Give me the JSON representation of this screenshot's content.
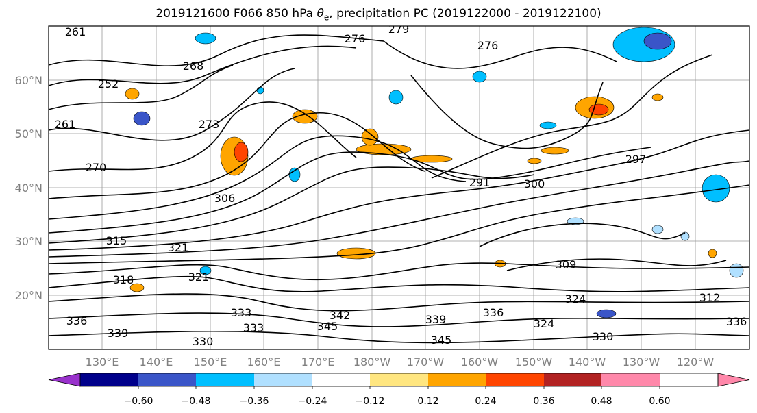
{
  "title_parts": {
    "prefix": "2019121600 F066 850 hPa ",
    "theta": "θ",
    "sub": "e",
    "suffix": ", precipitation PC (2019122000 - 2019122100)"
  },
  "chart_data": {
    "type": "map",
    "region": "North Pacific",
    "fields": [
      "850 hPa equivalent potential temperature contours",
      "precipitation PC shading"
    ],
    "lat_ticks": [
      "60°N",
      "50°N",
      "40°N",
      "30°N",
      "20°N"
    ],
    "lon_ticks": [
      "130°E",
      "140°E",
      "150°E",
      "160°E",
      "170°E",
      "180°W",
      "170°W",
      "160°W",
      "150°W",
      "140°W",
      "130°W",
      "120°W"
    ],
    "contour_labels": [
      "261",
      "279",
      "276",
      "276",
      "252",
      "268",
      "261",
      "273",
      "270",
      "291",
      "300",
      "297",
      "306",
      "315",
      "321",
      "318",
      "321",
      "309",
      "324",
      "312",
      "333",
      "342",
      "345",
      "339",
      "336",
      "324",
      "336",
      "339",
      "330",
      "336",
      "345",
      "330",
      "333"
    ],
    "colorbar": {
      "ticks": [
        "−0.60",
        "−0.48",
        "−0.36",
        "−0.24",
        "−0.12",
        "0.12",
        "0.24",
        "0.36",
        "0.48",
        "0.60"
      ],
      "colors": [
        "#9932cc",
        "#00008b",
        "#3a55c8",
        "#00bfff",
        "#b0e0ff",
        "#ffffff",
        "#ffe680",
        "#ffa500",
        "#ff4500",
        "#b22222",
        "#ff88aa"
      ],
      "extend": "both"
    }
  }
}
